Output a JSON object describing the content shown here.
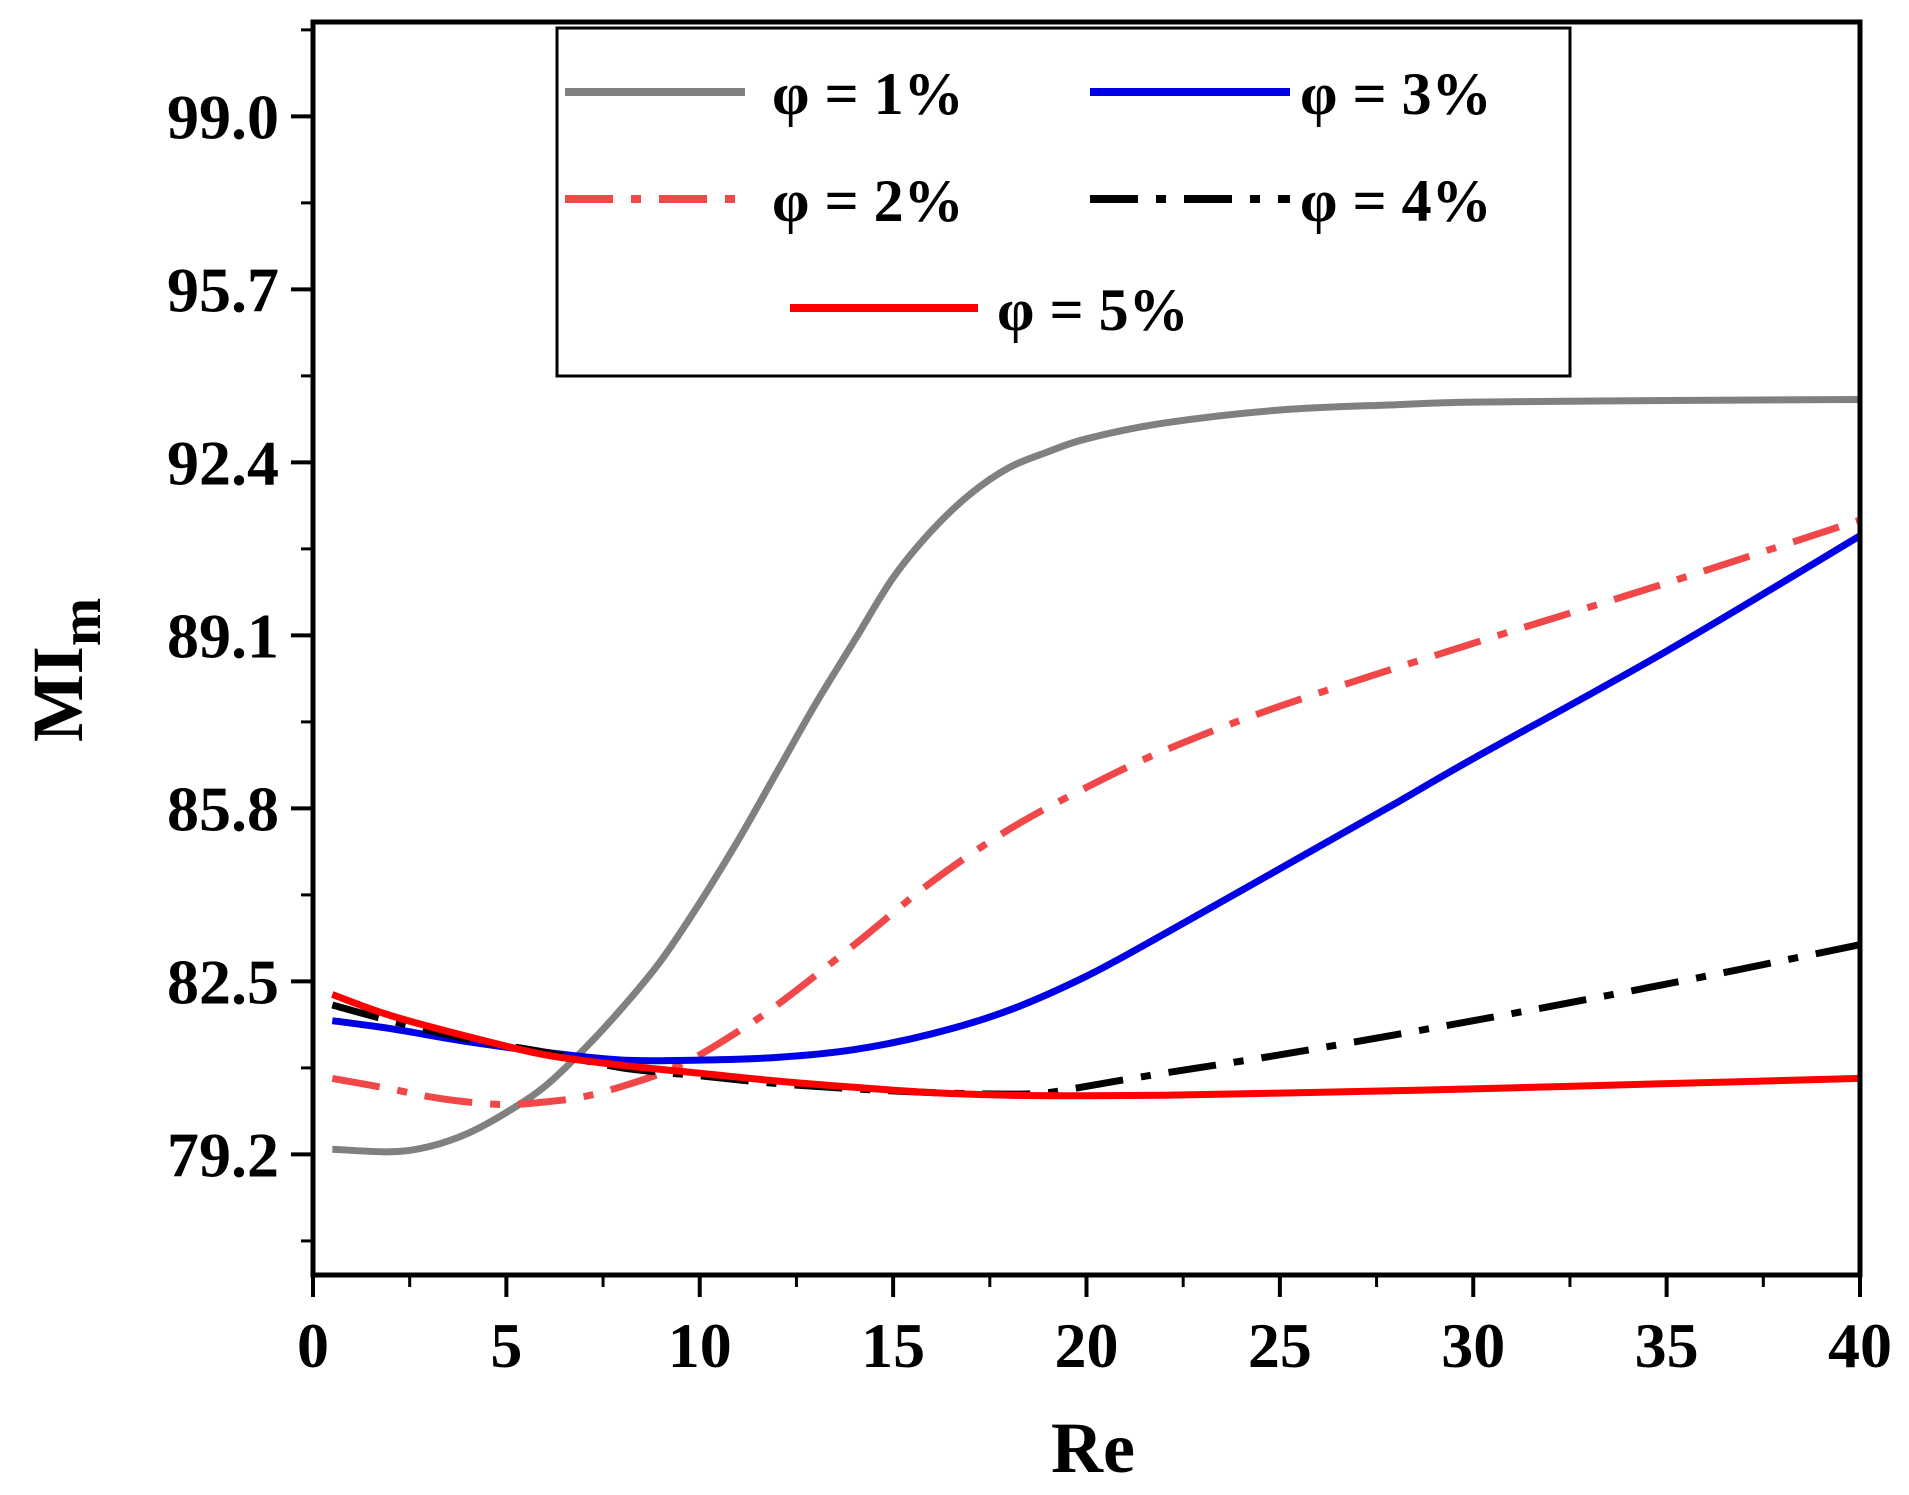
{
  "chart_data": {
    "type": "line",
    "title": "",
    "xlabel": "Re",
    "ylabel_main": "MI",
    "ylabel_sub": "m",
    "xlim": [
      0,
      40
    ],
    "ylim": [
      76.9,
      100.8
    ],
    "xticks": [
      0,
      5,
      10,
      15,
      20,
      25,
      30,
      35,
      40
    ],
    "xtick_labels": [
      "0",
      "5",
      "10",
      "15",
      "20",
      "25",
      "30",
      "35",
      "40"
    ],
    "yticks": [
      79.2,
      82.5,
      85.8,
      89.1,
      92.4,
      95.7,
      99.0
    ],
    "ytick_labels": [
      "79.2",
      "82.5",
      "85.8",
      "89.1",
      "92.4",
      "95.7",
      "99.0"
    ],
    "grid": false,
    "legend_position": "top-center",
    "series": [
      {
        "name": "φ = 1%",
        "color": "#808080",
        "dash": "solid",
        "x": [
          0.5,
          2,
          3,
          4,
          5,
          6,
          7,
          8,
          9,
          10,
          11,
          12,
          13,
          14,
          15,
          16,
          17,
          18,
          19,
          20,
          22,
          25,
          28,
          30,
          35,
          40
        ],
        "y": [
          79.3,
          79.25,
          79.35,
          79.6,
          80.0,
          80.5,
          81.2,
          82.0,
          82.9,
          84.0,
          85.2,
          86.5,
          87.8,
          89.0,
          90.2,
          91.1,
          91.8,
          92.3,
          92.6,
          92.85,
          93.15,
          93.4,
          93.5,
          93.55,
          93.58,
          93.6
        ]
      },
      {
        "name": "φ = 2%",
        "color": "#f04848",
        "dash": "dashdot",
        "x": [
          0.5,
          2,
          3,
          4,
          5,
          6,
          7,
          8,
          9,
          10,
          11,
          12,
          14,
          16,
          18,
          20,
          22,
          25,
          30,
          35,
          40
        ],
        "y": [
          80.65,
          80.45,
          80.3,
          80.2,
          80.15,
          80.2,
          80.3,
          80.5,
          80.75,
          81.1,
          81.55,
          82.05,
          83.2,
          84.4,
          85.4,
          86.2,
          86.9,
          87.75,
          88.95,
          90.1,
          91.3
        ]
      },
      {
        "name": "φ = 3%",
        "color": "#0000e6",
        "dash": "solid",
        "x": [
          0.5,
          2,
          4,
          6,
          8,
          10,
          12,
          14,
          16,
          18,
          20,
          22,
          25,
          28,
          30,
          35,
          40
        ],
        "y": [
          81.75,
          81.6,
          81.35,
          81.15,
          81.0,
          81.0,
          81.05,
          81.2,
          81.5,
          81.95,
          82.6,
          83.4,
          84.65,
          85.9,
          86.75,
          88.8,
          91.0
        ]
      },
      {
        "name": "φ = 4%",
        "color": "#000000",
        "dash": "dashdot",
        "x": [
          0.5,
          2,
          4,
          6,
          8,
          10,
          12,
          14,
          16,
          18,
          19,
          20,
          22,
          25,
          30,
          35,
          40
        ],
        "y": [
          82.05,
          81.75,
          81.4,
          81.15,
          80.85,
          80.7,
          80.55,
          80.45,
          80.38,
          80.35,
          80.38,
          80.5,
          80.75,
          81.1,
          81.75,
          82.45,
          83.2
        ]
      },
      {
        "name": "φ = 5%",
        "color": "#ff0000",
        "dash": "solid",
        "x": [
          0.5,
          2,
          4,
          6,
          8,
          10,
          12,
          14,
          16,
          18,
          20,
          22,
          25,
          30,
          35,
          40
        ],
        "y": [
          82.25,
          81.85,
          81.45,
          81.1,
          80.9,
          80.75,
          80.6,
          80.48,
          80.38,
          80.33,
          80.32,
          80.33,
          80.37,
          80.45,
          80.55,
          80.65
        ]
      }
    ]
  }
}
